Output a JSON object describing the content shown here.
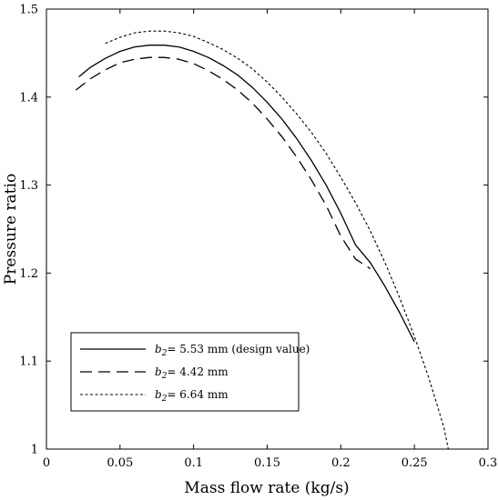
{
  "chart_data": {
    "type": "line",
    "xlabel": "Mass flow rate (kg/s)",
    "ylabel": "Pressure ratio",
    "xlim": [
      0,
      0.3
    ],
    "ylim": [
      1,
      1.5
    ],
    "xticks": [
      "0",
      "0.05",
      "0.1",
      "0.15",
      "0.2",
      "0.25",
      "0.3"
    ],
    "yticks": [
      "1",
      "1.1",
      "1.2",
      "1.3",
      "1.4",
      "1.5"
    ],
    "grid": false,
    "legend_position": "bottom-left",
    "series": [
      {
        "name": "b2= 5.53 mm (design value)",
        "legend_symbol": "b",
        "legend_subscript": "2",
        "legend_rest": "= 5.53 mm (design value)",
        "style": "solid",
        "x": [
          0.022,
          0.03,
          0.04,
          0.05,
          0.06,
          0.07,
          0.08,
          0.09,
          0.1,
          0.11,
          0.12,
          0.13,
          0.14,
          0.15,
          0.16,
          0.17,
          0.18,
          0.19,
          0.2,
          0.21,
          0.22,
          0.23,
          0.24,
          0.25
        ],
        "y": [
          1.423,
          1.434,
          1.444,
          1.452,
          1.457,
          1.459,
          1.459,
          1.457,
          1.452,
          1.445,
          1.436,
          1.425,
          1.411,
          1.394,
          1.375,
          1.353,
          1.328,
          1.3,
          1.268,
          1.232,
          1.212,
          1.185,
          1.155,
          1.122
        ]
      },
      {
        "name": "b2= 4.42 mm",
        "legend_symbol": "b",
        "legend_subscript": "2",
        "legend_rest": "= 4.42 mm",
        "style": "dashed",
        "x": [
          0.02,
          0.03,
          0.04,
          0.05,
          0.06,
          0.07,
          0.08,
          0.09,
          0.1,
          0.11,
          0.12,
          0.13,
          0.14,
          0.15,
          0.16,
          0.17,
          0.18,
          0.19,
          0.2,
          0.21,
          0.22
        ],
        "y": [
          1.408,
          1.421,
          1.431,
          1.439,
          1.443,
          1.445,
          1.445,
          1.443,
          1.438,
          1.43,
          1.42,
          1.408,
          1.393,
          1.375,
          1.355,
          1.332,
          1.306,
          1.277,
          1.242,
          1.216,
          1.205
        ]
      },
      {
        "name": "b2= 6.64 mm",
        "legend_symbol": "b",
        "legend_subscript": "2",
        "legend_rest": "= 6.64 mm",
        "style": "dotted",
        "x": [
          0.04,
          0.05,
          0.06,
          0.07,
          0.08,
          0.09,
          0.1,
          0.11,
          0.12,
          0.13,
          0.14,
          0.15,
          0.16,
          0.17,
          0.18,
          0.19,
          0.2,
          0.21,
          0.22,
          0.23,
          0.24,
          0.25,
          0.26,
          0.27,
          0.273
        ],
        "y": [
          1.461,
          1.468,
          1.473,
          1.475,
          1.475,
          1.473,
          1.469,
          1.462,
          1.454,
          1.444,
          1.432,
          1.417,
          1.4,
          1.381,
          1.36,
          1.336,
          1.309,
          1.28,
          1.248,
          1.212,
          1.172,
          1.128,
          1.08,
          1.025,
          1.0
        ]
      }
    ]
  }
}
